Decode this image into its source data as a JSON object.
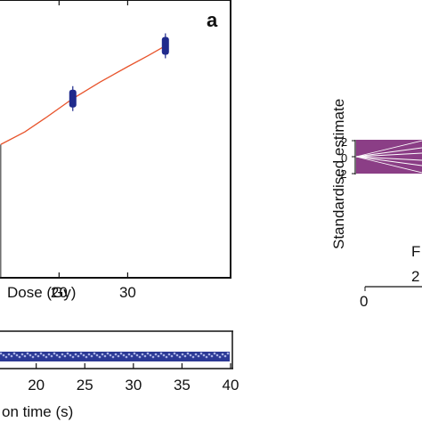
{
  "chart_data": [
    {
      "type": "scatter",
      "panel_label": "a",
      "xlabel": "Dose (Gy)",
      "ylabel": "",
      "title": "",
      "xlim": [
        11,
        45
      ],
      "ylim": [
        0,
        1
      ],
      "x_ticks": [
        20,
        30
      ],
      "grid": false,
      "colors": {
        "fit": "#e8542c",
        "points": "#1f2a8c",
        "frame": "#111111"
      },
      "series": [
        {
          "x": [
            22,
            35.5
          ],
          "y": [
            0.645,
            0.835
          ]
        }
      ],
      "fit_curve": {
        "x": [
          11.5,
          15,
          18,
          22,
          26,
          30,
          33,
          35.5
        ],
        "y": [
          0.48,
          0.525,
          0.575,
          0.645,
          0.705,
          0.76,
          0.8,
          0.835
        ]
      },
      "reference_line": {
        "x": 11.5,
        "y_from": 0,
        "y_to": 0.48
      }
    },
    {
      "type": "line",
      "xlabel": "on time (s)",
      "ylabel": "",
      "title": "",
      "xlim": [
        16,
        40
      ],
      "x_ticks": [
        20,
        25,
        30,
        35,
        40
      ],
      "grid": false,
      "series": [
        {
          "x": [
            16,
            40
          ],
          "y": [
            0.5,
            0.5
          ]
        }
      ]
    },
    {
      "type": "line",
      "ylabel": "Standardised estimate",
      "xlabel": "F",
      "title": "",
      "y_ticks": [
        2,
        0,
        -2
      ],
      "ylim": [
        -2,
        2
      ],
      "extra_labels": {
        "secondary_tick": "2",
        "bottom_tick_0": "0"
      },
      "colors": {
        "band": "#8b3e86",
        "lines": "#ffffff"
      },
      "series": []
    }
  ]
}
